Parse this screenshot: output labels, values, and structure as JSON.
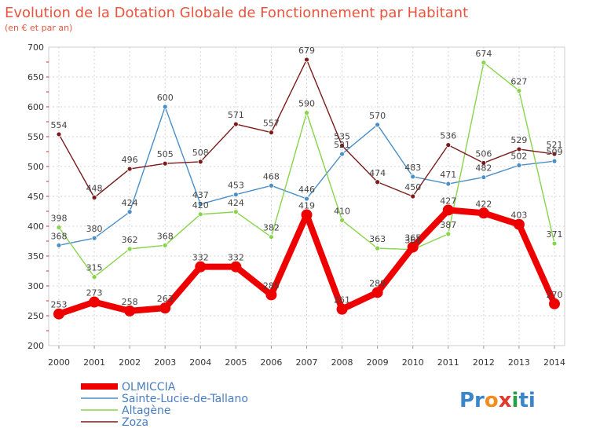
{
  "chart_data": {
    "type": "line",
    "title": "Evolution de la Dotation Globale de Fonctionnement par Habitant",
    "subtitle": "(en € et par an)",
    "xlabel": "",
    "ylabel": "",
    "x": [
      "2000",
      "2001",
      "2002",
      "2003",
      "2004",
      "2005",
      "2006",
      "2007",
      "2008",
      "2009",
      "2010",
      "2011",
      "2012",
      "2013",
      "2014"
    ],
    "ylim": [
      200,
      700
    ],
    "yticks": [
      "200",
      "250",
      "300",
      "350",
      "400",
      "450",
      "500",
      "550",
      "600",
      "650",
      "700"
    ],
    "grid": true,
    "legend_position": "bottom-left",
    "series": [
      {
        "name": "OLMICCIA",
        "color": "#ee0000",
        "values": [
          253,
          273,
          258,
          263,
          332,
          332,
          285,
          419,
          261,
          289,
          365,
          427,
          422,
          403,
          270
        ],
        "labels": [
          "253",
          "273",
          "258",
          "263",
          "332",
          "332",
          "285",
          "419",
          "261",
          "289",
          "365",
          "427",
          "422",
          "403",
          "270"
        ]
      },
      {
        "name": "Sainte-Lucie-de-Tallano",
        "color": "#4a8fc8",
        "values": [
          368,
          380,
          424,
          600,
          437,
          453,
          468,
          446,
          521,
          570,
          483,
          471,
          482,
          502,
          509
        ],
        "labels": [
          "368",
          "380",
          "424",
          "600",
          "437",
          "453",
          "468",
          "446",
          "521",
          "570",
          "483",
          "471",
          "482",
          "502",
          "509"
        ]
      },
      {
        "name": "Altagène",
        "color": "#88d44a",
        "values": [
          398,
          315,
          362,
          368,
          420,
          424,
          382,
          590,
          410,
          363,
          361,
          387,
          674,
          627,
          371
        ],
        "labels": [
          "398",
          "315",
          "362",
          "368",
          "420",
          "424",
          "382",
          "590",
          "410",
          "363",
          "361",
          "387",
          "674",
          "627",
          "371"
        ]
      },
      {
        "name": "Zoza",
        "color": "#7b1a1a",
        "values": [
          554,
          448,
          496,
          505,
          508,
          571,
          557,
          679,
          535,
          474,
          450,
          536,
          506,
          529,
          521
        ],
        "labels": [
          "554",
          "448",
          "496",
          "505",
          "508",
          "571",
          "557",
          "679",
          "535",
          "474",
          "450",
          "536",
          "506",
          "529",
          "521"
        ]
      }
    ]
  },
  "logo": {
    "parts": [
      "Pr",
      "o",
      "x",
      "i",
      "ti"
    ],
    "colors": [
      "#3a86c8",
      "#f28c1e",
      "#e03a2f",
      "#2a9d48",
      "#3a86c8"
    ]
  }
}
